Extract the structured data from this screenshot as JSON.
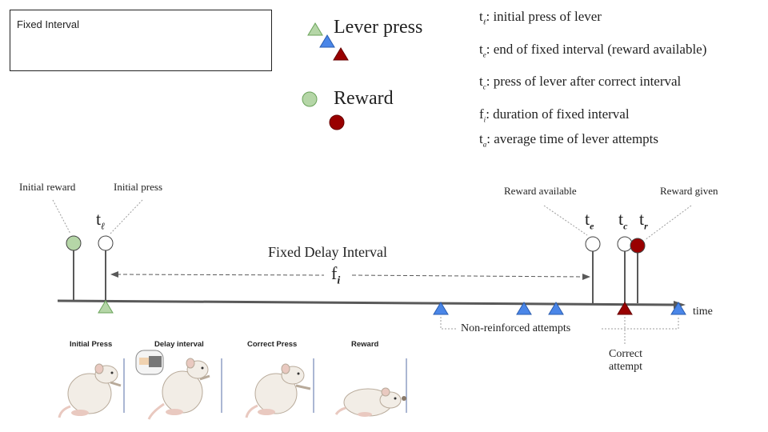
{
  "box": {
    "title": "Fixed Interval"
  },
  "legend": {
    "lever_press": "Lever press",
    "reward": "Reward"
  },
  "definitions": [
    {
      "sym": "t",
      "sub": "ℓ",
      "text": ": initial press of lever"
    },
    {
      "sym": "t",
      "sub": "e",
      "text": ": end of fixed interval (reward available)"
    },
    {
      "sym": "t",
      "sub": "c",
      "text": ": press of lever after correct interval"
    },
    {
      "sym": "f",
      "sub": "i",
      "text": ": duration of fixed interval"
    },
    {
      "sym": "t",
      "sub": "a",
      "text": ": average time of lever attempts"
    }
  ],
  "timeline": {
    "initial_reward": "Initial reward",
    "initial_press": "Initial press",
    "reward_available": "Reward available",
    "reward_given": "Reward given",
    "interval_label": "Fixed Delay Interval",
    "fi_sym": "f",
    "fi_sub": "i",
    "t_l": {
      "sym": "t",
      "sub": "ℓ"
    },
    "t_e": {
      "sym": "t",
      "sub": "e"
    },
    "t_c": {
      "sym": "t",
      "sub": "c"
    },
    "t_r": {
      "sym": "t",
      "sub": "r"
    },
    "time": "time",
    "non_reinforced": "Non-reinforced attempts",
    "correct_attempt_1": "Correct",
    "correct_attempt_2": "attempt"
  },
  "frames": [
    "Initial Press",
    "Delay interval",
    "Correct Press",
    "Reward"
  ],
  "colors": {
    "green_fill": "#b5d6a7",
    "green_stroke": "#6aa35a",
    "blue_fill": "#4a86e8",
    "blue_stroke": "#2a5db0",
    "red_fill": "#990000",
    "red_stroke": "#660000",
    "line": "#595959"
  }
}
